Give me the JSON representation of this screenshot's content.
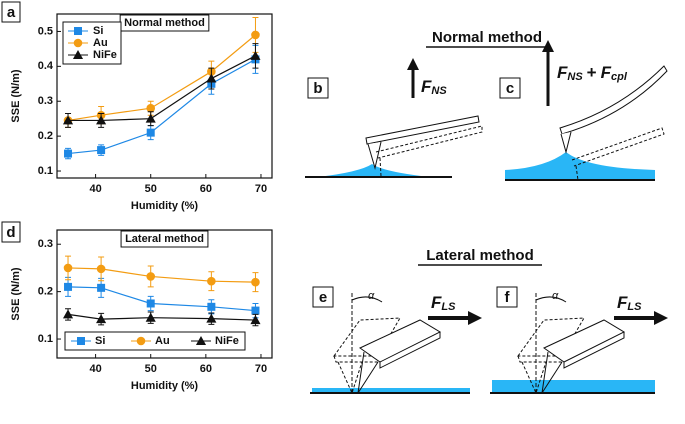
{
  "chart_data": [
    {
      "type": "line",
      "panel": "a",
      "title": "Normal method",
      "xlabel": "Humidity (%)",
      "ylabel": "SSE (N/m)",
      "x": [
        35,
        41,
        50,
        61,
        69
      ],
      "xlim": [
        33,
        72
      ],
      "xticks": [
        40,
        50,
        60,
        70
      ],
      "ylim": [
        0.08,
        0.55
      ],
      "yticks": [
        0.1,
        0.2,
        0.3,
        0.4,
        0.5
      ],
      "legend": "upper left",
      "series": [
        {
          "name": "Si",
          "color": "#1e88e5",
          "marker": "square",
          "values": [
            0.15,
            0.16,
            0.21,
            0.35,
            0.42
          ],
          "errors": [
            0.015,
            0.015,
            0.02,
            0.03,
            0.04
          ]
        },
        {
          "name": "Au",
          "color": "#f39c12",
          "marker": "circle",
          "values": [
            0.245,
            0.26,
            0.28,
            0.385,
            0.49
          ],
          "errors": [
            0.02,
            0.025,
            0.02,
            0.03,
            0.05
          ]
        },
        {
          "name": "NiFe",
          "color": "#111111",
          "marker": "triangle",
          "values": [
            0.245,
            0.245,
            0.25,
            0.365,
            0.43
          ],
          "errors": [
            0.02,
            0.02,
            0.02,
            0.03,
            0.035
          ]
        }
      ]
    },
    {
      "type": "line",
      "panel": "d",
      "title": "Lateral method",
      "xlabel": "Humidity (%)",
      "ylabel": "SSE (N/m)",
      "x": [
        35,
        41,
        50,
        61,
        69
      ],
      "xlim": [
        33,
        72
      ],
      "xticks": [
        40,
        50,
        60,
        70
      ],
      "ylim": [
        0.06,
        0.33
      ],
      "yticks": [
        0.1,
        0.2,
        0.3
      ],
      "legend": "lower left",
      "series": [
        {
          "name": "Si",
          "color": "#1e88e5",
          "marker": "square",
          "values": [
            0.21,
            0.208,
            0.175,
            0.168,
            0.16
          ],
          "errors": [
            0.02,
            0.02,
            0.015,
            0.015,
            0.015
          ]
        },
        {
          "name": "Au",
          "color": "#f39c12",
          "marker": "circle",
          "values": [
            0.25,
            0.248,
            0.232,
            0.222,
            0.22
          ],
          "errors": [
            0.025,
            0.025,
            0.022,
            0.02,
            0.02
          ]
        },
        {
          "name": "NiFe",
          "color": "#111111",
          "marker": "triangle",
          "values": [
            0.152,
            0.142,
            0.145,
            0.143,
            0.14
          ],
          "errors": [
            0.012,
            0.012,
            0.012,
            0.012,
            0.012
          ]
        }
      ]
    }
  ],
  "diagram": {
    "normal_title": "Normal method",
    "lateral_title": "Lateral method",
    "panels": [
      "b",
      "c",
      "e",
      "f"
    ],
    "force_b": {
      "symbol": "F",
      "sub": "NS"
    },
    "force_c": {
      "symbol": "F",
      "sub": "NS",
      "operator": "+",
      "symbol2": "F",
      "sub2": "cpl"
    },
    "force_lateral": {
      "symbol": "F",
      "sub": "LS"
    },
    "angle": "α"
  }
}
